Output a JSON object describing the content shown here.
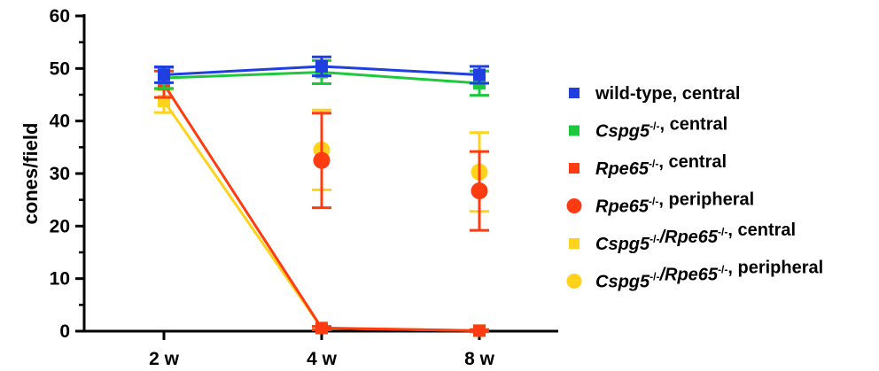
{
  "chart_data": {
    "type": "line",
    "title": "",
    "xlabel": "",
    "ylabel": "cones/field",
    "categories": [
      "2 w",
      "4 w",
      "8 w"
    ],
    "ylim": [
      0,
      60
    ],
    "yticks": [
      0,
      10,
      20,
      30,
      40,
      50,
      60
    ],
    "grid": false,
    "legend_position": "right",
    "series": [
      {
        "id": "wt-central",
        "legend_parts": [
          {
            "text": "wild-type, central",
            "style": "normal"
          }
        ],
        "color": "#1f3fe0",
        "marker": "square",
        "line": true,
        "values": [
          48.8,
          50.4,
          48.8
        ],
        "errors": [
          1.5,
          1.8,
          1.6
        ]
      },
      {
        "id": "cspg5-central",
        "legend_parts": [
          {
            "text": "Cspg5",
            "style": "italic"
          },
          {
            "text": "-/-",
            "style": "sup"
          },
          {
            "text": ", central",
            "style": "normal"
          }
        ],
        "color": "#1ec83c",
        "marker": "square",
        "line": true,
        "values": [
          48.2,
          49.3,
          47.2
        ],
        "errors": [
          2.0,
          2.2,
          2.3
        ]
      },
      {
        "id": "rpe65-central",
        "legend_parts": [
          {
            "text": "Rpe65",
            "style": "italic"
          },
          {
            "text": "-/-",
            "style": "sup"
          },
          {
            "text": ", central",
            "style": "normal"
          }
        ],
        "color": "#ff3b12",
        "marker": "square",
        "line": true,
        "values": [
          47.0,
          0.6,
          0.1
        ],
        "errors": [
          2.5,
          0.3,
          0.2
        ]
      },
      {
        "id": "rpe65-peripheral",
        "legend_parts": [
          {
            "text": "Rpe65",
            "style": "italic"
          },
          {
            "text": "-/-",
            "style": "sup"
          },
          {
            "text": ", peripheral",
            "style": "normal"
          }
        ],
        "color": "#ff3b12",
        "marker": "circle",
        "line": false,
        "values": [
          null,
          32.5,
          26.7
        ],
        "errors": [
          null,
          9.0,
          7.5
        ]
      },
      {
        "id": "dko-central",
        "legend_parts": [
          {
            "text": "Cspg5",
            "style": "italic"
          },
          {
            "text": "-/-",
            "style": "sup"
          },
          {
            "text": "/",
            "style": "italic"
          },
          {
            "text": "Rpe65",
            "style": "italic"
          },
          {
            "text": "-/-",
            "style": "sup"
          },
          {
            "text": ", central",
            "style": "normal"
          }
        ],
        "color": "#ffd21c",
        "marker": "square",
        "line": true,
        "values": [
          43.8,
          0.6,
          0.1
        ],
        "errors": [
          2.2,
          0.3,
          0.2
        ]
      },
      {
        "id": "dko-peripheral",
        "legend_parts": [
          {
            "text": "Cspg5",
            "style": "italic"
          },
          {
            "text": "-/-",
            "style": "sup"
          },
          {
            "text": "/",
            "style": "italic"
          },
          {
            "text": "Rpe65",
            "style": "italic"
          },
          {
            "text": "-/-",
            "style": "sup"
          },
          {
            "text": ", peripheral",
            "style": "normal"
          }
        ],
        "color": "#ffd21c",
        "marker": "circle",
        "line": false,
        "values": [
          null,
          34.5,
          30.3
        ],
        "errors": [
          null,
          7.6,
          7.5
        ]
      }
    ]
  }
}
